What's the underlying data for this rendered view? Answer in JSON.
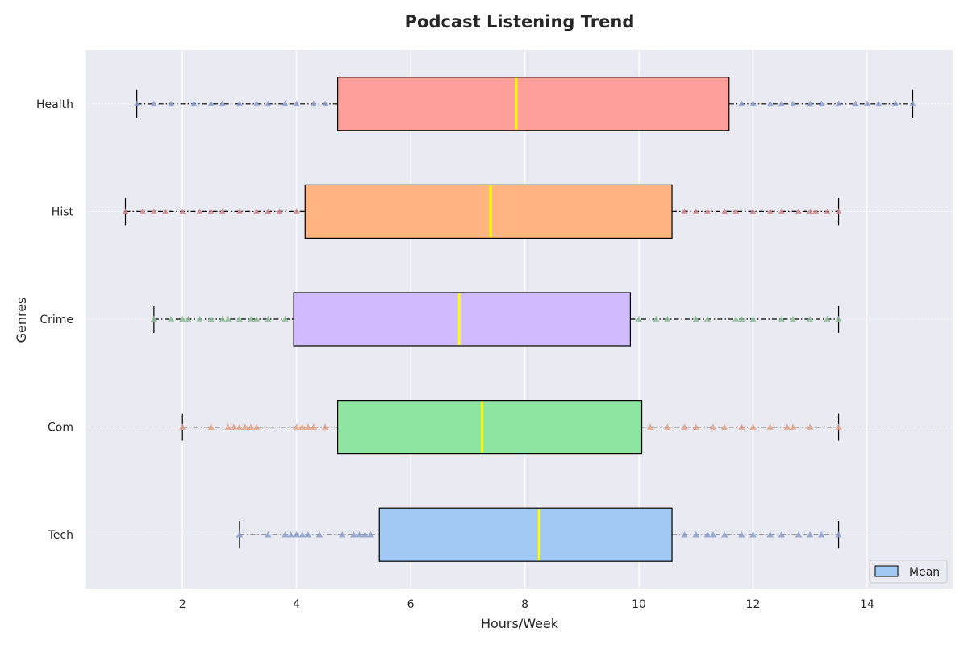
{
  "chart_data": {
    "type": "boxplot",
    "orientation": "horizontal",
    "title": "Podcast Listening Trend",
    "xlabel": "Hours/Week",
    "ylabel": "Genres",
    "xlim": [
      0.3,
      15.5
    ],
    "xticks": [
      2,
      4,
      6,
      8,
      10,
      12,
      14
    ],
    "grid": true,
    "legend": {
      "placement": "bottom-right",
      "label": "Mean"
    },
    "median_color": "#ffff00",
    "categories": [
      "Tech",
      "Com",
      "Crime",
      "Hist",
      "Health"
    ],
    "series": [
      {
        "category": "Tech",
        "color": "#a1c9f4",
        "marker_color": "#8c9fce",
        "whisker_low": 3.0,
        "q1": 5.45,
        "median": 8.25,
        "q3": 10.58,
        "whisker_high": 13.5,
        "points": [
          3.0,
          3.5,
          3.8,
          3.9,
          4.0,
          4.1,
          4.2,
          4.4,
          4.8,
          5.0,
          5.1,
          5.2,
          5.3,
          10.8,
          11.0,
          11.2,
          11.3,
          11.5,
          11.8,
          12.0,
          12.3,
          12.5,
          12.8,
          13.0,
          13.2,
          13.5
        ]
      },
      {
        "category": "Com",
        "color": "#8de5a1",
        "marker_color": "#e0a58c",
        "whisker_low": 2.0,
        "q1": 4.72,
        "median": 7.25,
        "q3": 10.05,
        "whisker_high": 13.5,
        "points": [
          2.0,
          2.5,
          2.8,
          2.9,
          3.0,
          3.1,
          3.2,
          3.3,
          4.0,
          4.1,
          4.2,
          4.3,
          4.5,
          10.2,
          10.5,
          10.8,
          11.0,
          11.3,
          11.5,
          11.8,
          12.0,
          12.3,
          12.6,
          12.7,
          13.0,
          13.5
        ]
      },
      {
        "category": "Crime",
        "color": "#d0bbff",
        "marker_color": "#8fc09a",
        "whisker_low": 1.5,
        "q1": 3.95,
        "median": 6.85,
        "q3": 9.85,
        "whisker_high": 13.5,
        "points": [
          1.5,
          1.8,
          2.0,
          2.1,
          2.3,
          2.5,
          2.7,
          2.8,
          3.0,
          3.2,
          3.3,
          3.5,
          3.8,
          10.0,
          10.3,
          10.5,
          11.0,
          11.2,
          11.7,
          11.8,
          12.0,
          12.5,
          12.7,
          13.0,
          13.3,
          13.5
        ]
      },
      {
        "category": "Hist",
        "color": "#ffb482",
        "marker_color": "#c98a8e",
        "whisker_low": 1.0,
        "q1": 4.15,
        "median": 7.4,
        "q3": 10.58,
        "whisker_high": 13.5,
        "points": [
          1.0,
          1.3,
          1.5,
          1.7,
          2.0,
          2.3,
          2.5,
          2.7,
          3.0,
          3.3,
          3.5,
          3.7,
          4.0,
          10.8,
          11.0,
          11.2,
          11.5,
          11.7,
          12.0,
          12.3,
          12.5,
          12.8,
          13.0,
          13.1,
          13.3,
          13.5
        ]
      },
      {
        "category": "Health",
        "color": "#ff9f9b",
        "marker_color": "#8c9fce",
        "whisker_low": 1.2,
        "q1": 4.72,
        "median": 7.85,
        "q3": 11.58,
        "whisker_high": 14.8,
        "points": [
          1.2,
          1.5,
          1.8,
          2.2,
          2.5,
          2.7,
          3.0,
          3.3,
          3.5,
          3.8,
          4.0,
          4.3,
          4.5,
          11.8,
          12.0,
          12.3,
          12.5,
          12.7,
          13.0,
          13.2,
          13.5,
          13.8,
          14.0,
          14.2,
          14.5,
          14.8
        ]
      }
    ]
  }
}
